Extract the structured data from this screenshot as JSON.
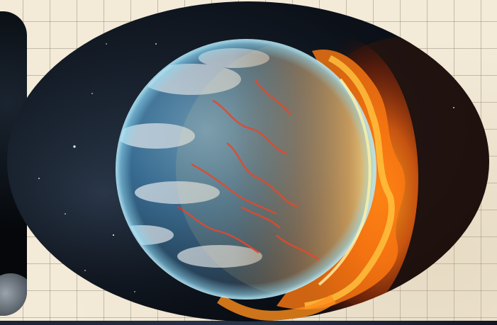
{
  "scene": {
    "subject": "planet-burning-icon",
    "colors": {
      "paper": "#f3ead8",
      "grid": "#8a7f70",
      "space": "#0c1119",
      "ocean": "#3f7ea8",
      "atmosphere": "#8fd6ee",
      "fire": "#ff8a1a",
      "lava": "#d8321c"
    }
  }
}
